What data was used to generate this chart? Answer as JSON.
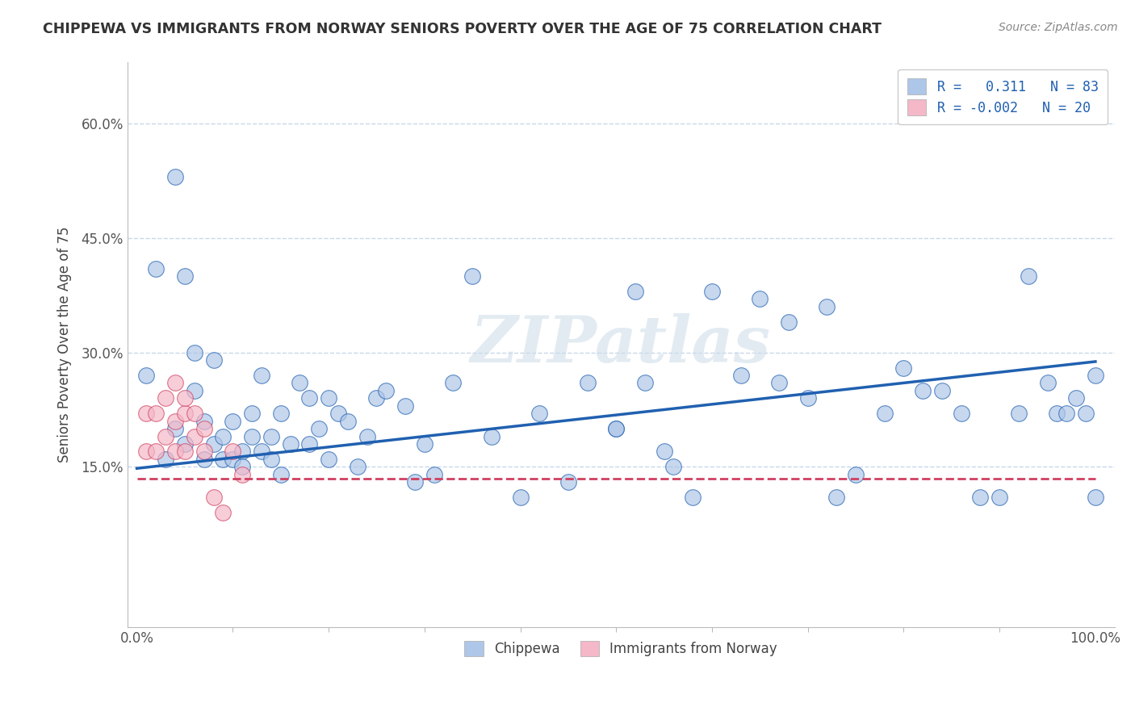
{
  "title": "CHIPPEWA VS IMMIGRANTS FROM NORWAY SENIORS POVERTY OVER THE AGE OF 75 CORRELATION CHART",
  "source": "Source: ZipAtlas.com",
  "xlabel": "",
  "ylabel": "Seniors Poverty Over the Age of 75",
  "xlim": [
    -0.01,
    1.02
  ],
  "ylim": [
    -0.06,
    0.68
  ],
  "yticks": [
    0.15,
    0.3,
    0.45,
    0.6
  ],
  "xticks": [
    0.0,
    1.0
  ],
  "xtick_labels": [
    "0.0%",
    "100.0%"
  ],
  "ytick_labels": [
    "15.0%",
    "30.0%",
    "45.0%",
    "60.0%"
  ],
  "legend_labels": [
    "Chippewa",
    "Immigrants from Norway"
  ],
  "R_blue": 0.311,
  "N_blue": 83,
  "R_pink": -0.002,
  "N_pink": 20,
  "blue_color": "#aec6e8",
  "pink_color": "#f4b8c8",
  "blue_line_color": "#2060b0",
  "pink_line_color": "#d04060",
  "watermark": "ZIPatlas",
  "background_color": "#ffffff",
  "grid_color": "#c8d8ea",
  "title_color": "#333333",
  "source_color": "#888888",
  "blue_scatter_x": [
    0.01,
    0.02,
    0.03,
    0.04,
    0.04,
    0.05,
    0.05,
    0.06,
    0.06,
    0.07,
    0.07,
    0.08,
    0.08,
    0.09,
    0.09,
    0.1,
    0.1,
    0.11,
    0.11,
    0.12,
    0.12,
    0.13,
    0.13,
    0.14,
    0.14,
    0.15,
    0.15,
    0.16,
    0.17,
    0.18,
    0.18,
    0.19,
    0.2,
    0.2,
    0.21,
    0.22,
    0.23,
    0.24,
    0.25,
    0.26,
    0.28,
    0.29,
    0.3,
    0.31,
    0.33,
    0.35,
    0.37,
    0.4,
    0.42,
    0.45,
    0.47,
    0.5,
    0.52,
    0.53,
    0.55,
    0.56,
    0.58,
    0.6,
    0.63,
    0.65,
    0.67,
    0.68,
    0.7,
    0.72,
    0.73,
    0.75,
    0.78,
    0.8,
    0.82,
    0.84,
    0.86,
    0.88,
    0.9,
    0.92,
    0.93,
    0.95,
    0.96,
    0.97,
    0.98,
    0.99,
    1.0,
    1.0,
    0.5
  ],
  "blue_scatter_y": [
    0.27,
    0.41,
    0.16,
    0.2,
    0.53,
    0.4,
    0.18,
    0.3,
    0.25,
    0.16,
    0.21,
    0.29,
    0.18,
    0.16,
    0.19,
    0.16,
    0.21,
    0.17,
    0.15,
    0.19,
    0.22,
    0.17,
    0.27,
    0.19,
    0.16,
    0.14,
    0.22,
    0.18,
    0.26,
    0.18,
    0.24,
    0.2,
    0.16,
    0.24,
    0.22,
    0.21,
    0.15,
    0.19,
    0.24,
    0.25,
    0.23,
    0.13,
    0.18,
    0.14,
    0.26,
    0.4,
    0.19,
    0.11,
    0.22,
    0.13,
    0.26,
    0.2,
    0.38,
    0.26,
    0.17,
    0.15,
    0.11,
    0.38,
    0.27,
    0.37,
    0.26,
    0.34,
    0.24,
    0.36,
    0.11,
    0.14,
    0.22,
    0.28,
    0.25,
    0.25,
    0.22,
    0.11,
    0.11,
    0.22,
    0.4,
    0.26,
    0.22,
    0.22,
    0.24,
    0.22,
    0.27,
    0.11,
    0.2
  ],
  "pink_scatter_x": [
    0.01,
    0.01,
    0.02,
    0.02,
    0.03,
    0.03,
    0.04,
    0.04,
    0.04,
    0.05,
    0.05,
    0.05,
    0.06,
    0.06,
    0.07,
    0.07,
    0.08,
    0.09,
    0.1,
    0.11
  ],
  "pink_scatter_y": [
    0.22,
    0.17,
    0.22,
    0.17,
    0.19,
    0.24,
    0.21,
    0.26,
    0.17,
    0.22,
    0.17,
    0.24,
    0.19,
    0.22,
    0.17,
    0.2,
    0.11,
    0.09,
    0.17,
    0.14
  ]
}
